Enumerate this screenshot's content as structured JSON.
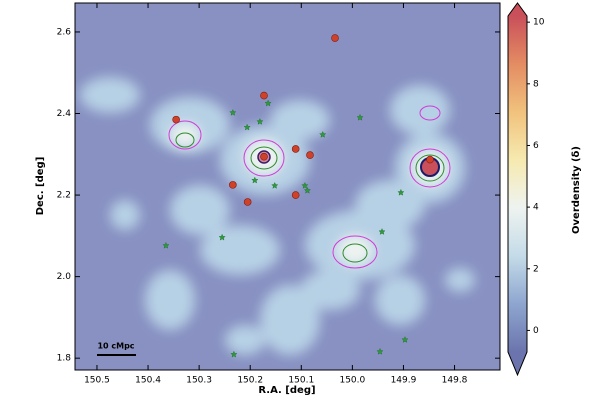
{
  "chart_data": {
    "type": "scatter",
    "xlabel": "R.A. [deg]",
    "ylabel": "Dec. [deg]",
    "xlim": [
      150.543,
      149.711
    ],
    "ylim": [
      1.771,
      2.671
    ],
    "xticks": [
      150.5,
      150.4,
      150.3,
      150.2,
      150.1,
      {
        "value": 150.0,
        "label": "150.0"
      },
      149.9,
      149.8
    ],
    "yticks": [
      1.8,
      {
        "value": 2.0,
        "label": "2.0"
      },
      2.2,
      2.4,
      2.6
    ],
    "scale_bar_label": "10 cMpc",
    "colorbar": {
      "label": "Overdensity (δ)",
      "lim": [
        -0.7,
        10.2
      ],
      "ticks": [
        0,
        2,
        4,
        6,
        8,
        10
      ],
      "colormap": [
        "#6b74ad",
        "#8ea6cf",
        "#c4dbe8",
        "#eef3f0",
        "#f6eab0",
        "#f1c27d",
        "#e48c63",
        "#c9505a"
      ]
    },
    "series": [
      {
        "color": "#d0412a",
        "marker": "circle",
        "x": [
          150.034,
          150.345,
          150.173,
          150.173,
          150.111,
          150.083,
          150.234,
          150.205,
          150.111,
          149.848
        ],
        "y": [
          2.585,
          2.385,
          2.444,
          2.294,
          2.313,
          2.298,
          2.225,
          2.183,
          2.2,
          2.287
        ]
      },
      {
        "color": "#2e9a3c",
        "marker": "star",
        "x": [
          150.206,
          150.181,
          150.165,
          150.234,
          150.191,
          150.152,
          150.093,
          150.088,
          150.058,
          149.985,
          149.905,
          149.942,
          150.255,
          150.365,
          150.232,
          149.946,
          149.897
        ],
        "y": [
          2.366,
          2.38,
          2.425,
          2.402,
          2.236,
          2.223,
          2.223,
          2.211,
          2.348,
          2.39,
          2.206,
          2.11,
          2.096,
          2.076,
          1.809,
          1.816,
          1.845
        ]
      }
    ]
  }
}
